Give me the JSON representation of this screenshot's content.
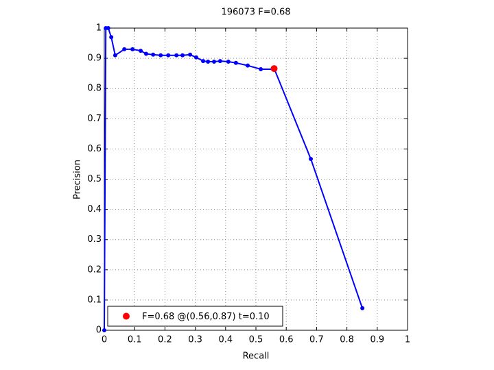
{
  "chart_data": {
    "type": "line",
    "title": "196073 F=0.68",
    "x_label": "Recall",
    "y_label": "Precision",
    "series": [
      {
        "color": "#0000ff",
        "x": [
          0.0,
          0.005,
          0.013,
          0.023,
          0.036,
          0.066,
          0.093,
          0.12,
          0.138,
          0.161,
          0.186,
          0.211,
          0.238,
          0.258,
          0.283,
          0.303,
          0.326,
          0.342,
          0.362,
          0.382,
          0.409,
          0.434,
          0.473,
          0.516,
          0.561,
          0.681,
          0.851
        ],
        "values": [
          0.0,
          1.0,
          1.0,
          0.97,
          0.91,
          0.93,
          0.93,
          0.925,
          0.915,
          0.912,
          0.91,
          0.91,
          0.91,
          0.91,
          0.912,
          0.903,
          0.891,
          0.889,
          0.889,
          0.891,
          0.889,
          0.885,
          0.876,
          0.864,
          0.864,
          0.567,
          0.073
        ]
      }
    ],
    "best": {
      "label": "F=0.68 @(0.56,0.87) t=0.10",
      "x": 0.56,
      "y": 0.866,
      "color": "#ff0000"
    },
    "legend": "lower left",
    "xlim": [
      0,
      1
    ],
    "ylim": [
      0,
      1
    ],
    "xticks": [
      0,
      0.1,
      0.2,
      0.3,
      0.4,
      0.5,
      0.6,
      0.7,
      0.8,
      0.9,
      1
    ],
    "yticks": [
      0,
      0.1,
      0.2,
      0.3,
      0.4,
      0.5,
      0.6,
      0.7,
      0.8,
      0.9,
      1
    ],
    "grid": true
  }
}
